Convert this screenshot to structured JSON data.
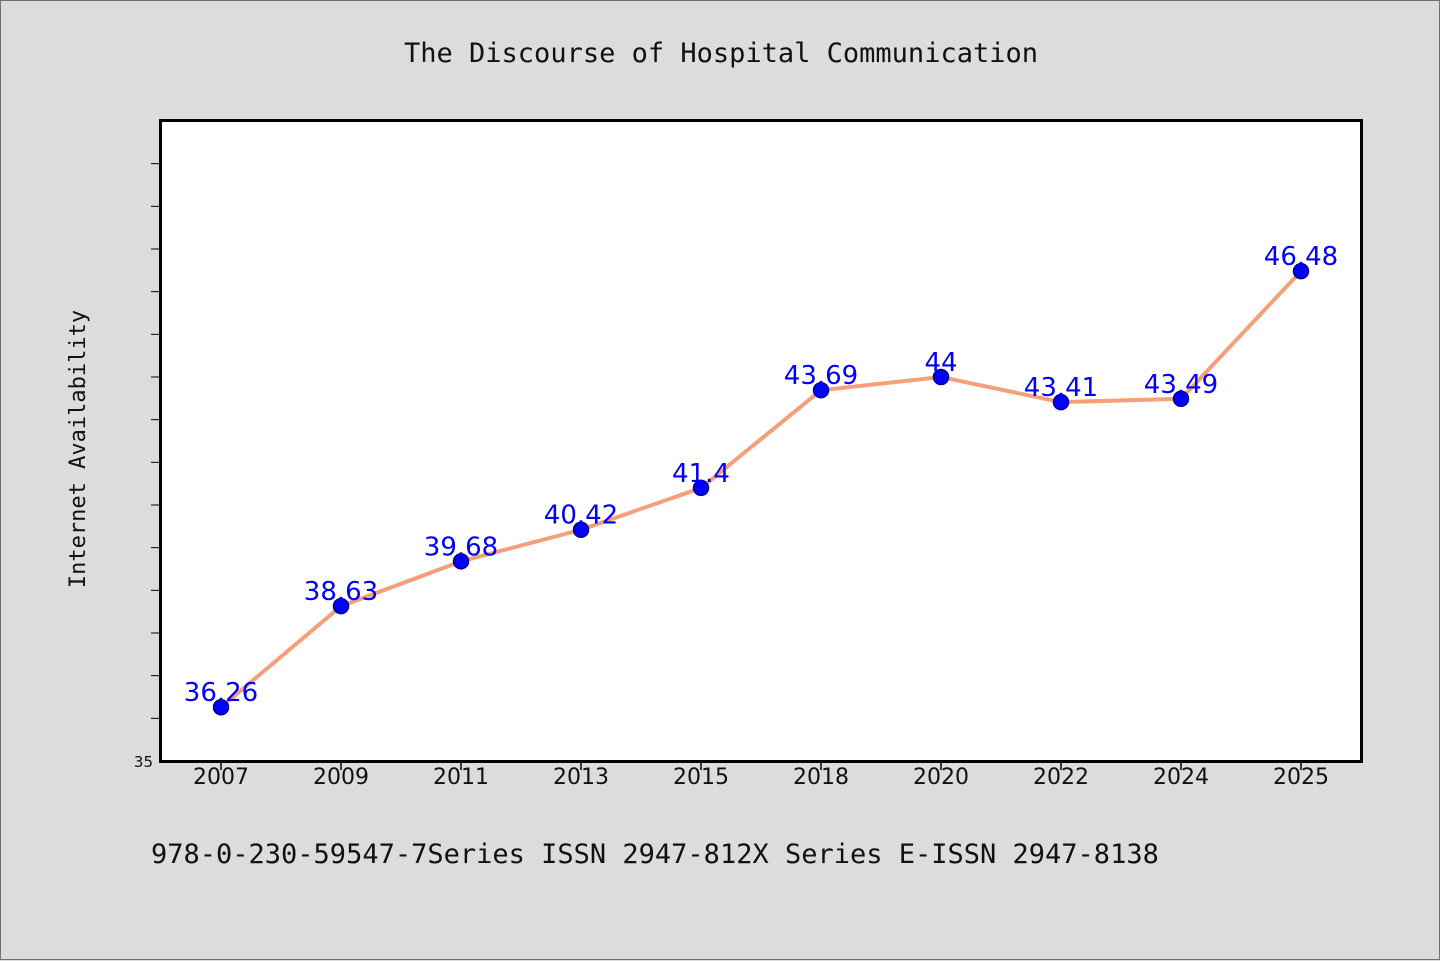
{
  "chart_data": {
    "type": "line",
    "title": "The Discourse of Hospital Communication",
    "xlabel": "",
    "ylabel": "Internet Availability",
    "categories": [
      "2007",
      "2009",
      "2011",
      "2013",
      "2015",
      "2018",
      "2020",
      "2022",
      "2024",
      "2025"
    ],
    "series": [
      {
        "values": [
          36.26,
          38.63,
          39.68,
          40.42,
          41.4,
          43.69,
          44,
          43.41,
          43.49,
          46.48
        ],
        "labels": [
          "36.26",
          "38.63",
          "39.68",
          "40.42",
          "41.4",
          "43.69",
          "44",
          "43.41",
          "43.49",
          "46.48"
        ]
      }
    ],
    "ylim": [
      35,
      50
    ],
    "ytick_labels": [
      "35"
    ],
    "grid": false,
    "legend": "none",
    "colors": {
      "line": "#f5a07a",
      "marker": "#0000ff",
      "marker_edge": "#00008b",
      "data_label": "#0000ff",
      "plot_background": "#ffffff",
      "figure_background": "#dcdcdc"
    }
  },
  "footer": {
    "text": "978-0-230-59547-7Series ISSN 2947-812X Series E-ISSN 2947-8138"
  }
}
